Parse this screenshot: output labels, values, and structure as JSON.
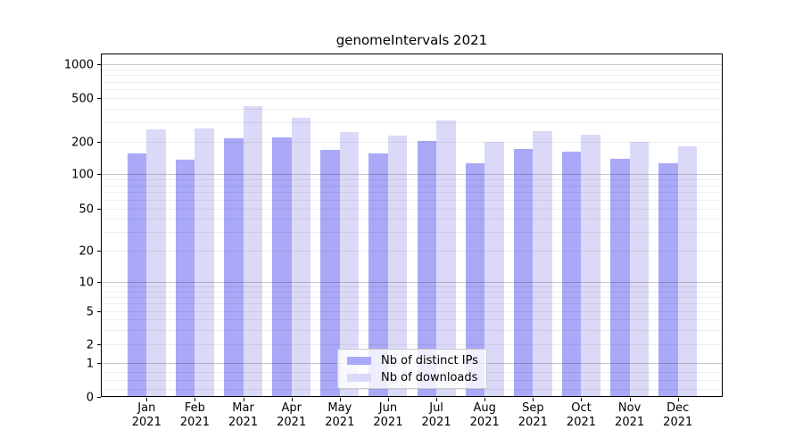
{
  "title": "genomeIntervals 2021",
  "legend": {
    "items": [
      {
        "label": "Nb of distinct IPs",
        "color": "#a9a9f8"
      },
      {
        "label": "Nb of downloads",
        "color": "#dadaf8"
      }
    ]
  },
  "chart_data": {
    "type": "bar",
    "title": "genomeIntervals 2021",
    "categories": [
      "Jan 2021",
      "Feb 2021",
      "Mar 2021",
      "Apr 2021",
      "May 2021",
      "Jun 2021",
      "Jul 2021",
      "Aug 2021",
      "Sep 2021",
      "Oct 2021",
      "Nov 2021",
      "Dec 2021"
    ],
    "series": [
      {
        "name": "Nb of distinct IPs",
        "color": "#a9a9f8",
        "values": [
          155,
          136,
          215,
          218,
          168,
          155,
          203,
          125,
          172,
          163,
          138,
          125
        ]
      },
      {
        "name": "Nb of downloads",
        "color": "#dadaf8",
        "values": [
          258,
          265,
          425,
          330,
          247,
          228,
          315,
          200,
          248,
          234,
          200,
          180
        ]
      }
    ],
    "xlabel": "",
    "ylabel": "",
    "yscale": "symlog",
    "yticks": [
      0,
      1,
      2,
      5,
      10,
      20,
      50,
      100,
      200,
      500,
      1000
    ],
    "ylim": [
      0,
      1200
    ],
    "grid": true,
    "legend_position": "lower-center"
  }
}
